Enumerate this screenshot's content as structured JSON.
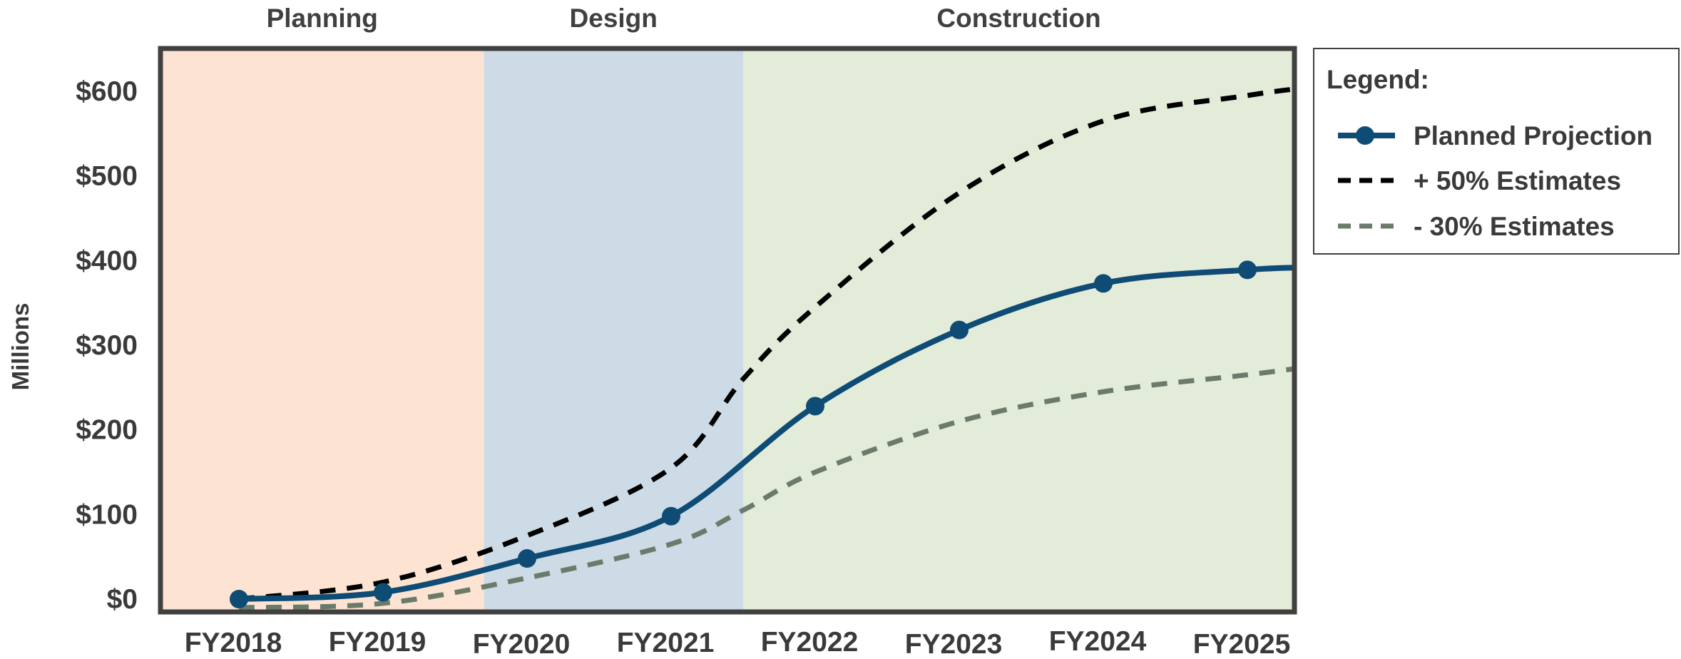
{
  "chart_data": {
    "type": "line",
    "ylabel": "Millions",
    "ylim": [
      0,
      610
    ],
    "yticks": [
      0,
      100,
      200,
      300,
      400,
      500,
      600
    ],
    "ytick_labels": [
      "$0",
      "$100",
      "$200",
      "$300",
      "$400",
      "$500",
      "$600"
    ],
    "categories": [
      "FY2018",
      "FY2019",
      "FY2020",
      "FY2021",
      "FY2022",
      "FY2023",
      "FY2024",
      "FY2025"
    ],
    "phases": [
      {
        "name": "Planning",
        "start": -0.55,
        "end": 1.7,
        "color": "#fde4d2"
      },
      {
        "name": "Design",
        "start": 1.7,
        "end": 3.5,
        "color": "#ccdbe5"
      },
      {
        "name": "Construction",
        "start": 3.5,
        "end": 7.45,
        "color": "#e3ecd9"
      }
    ],
    "series": [
      {
        "name": "Planned Projection",
        "color": "#0e4b75",
        "style": "solid",
        "markers": true,
        "x": [
          0,
          1,
          2,
          3,
          4,
          5,
          6,
          7,
          7.45
        ],
        "values": [
          0,
          8,
          48,
          98,
          228,
          318,
          373,
          389,
          392
        ]
      },
      {
        "name": "+ 50% Estimates",
        "color": "#000000",
        "style": "dashed",
        "markers": false,
        "x": [
          0,
          1,
          2,
          3,
          3.5,
          4,
          5,
          6,
          7,
          7.45
        ],
        "values": [
          0,
          20,
          75,
          155,
          260,
          345,
          480,
          565,
          595,
          605
        ]
      },
      {
        "name": "- 30% Estimates",
        "color": "#6b7b6b",
        "style": "dashed",
        "markers": false,
        "x": [
          0,
          1,
          2,
          3,
          3.5,
          4,
          5,
          6,
          7,
          7.45
        ],
        "values": [
          -10,
          -5,
          25,
          65,
          105,
          150,
          210,
          245,
          265,
          275
        ]
      }
    ],
    "legend": {
      "title": "Legend:",
      "position": "right"
    },
    "grid": false
  }
}
